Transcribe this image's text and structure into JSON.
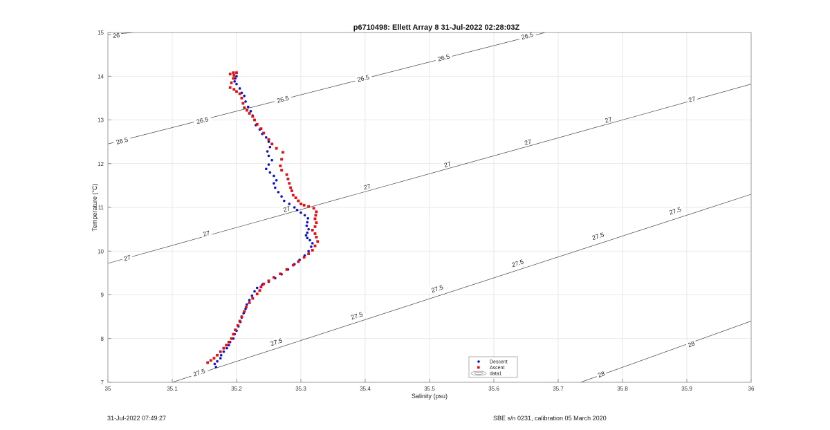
{
  "chart_data": {
    "type": "scatter",
    "title": "p6710498: Ellett Array 8 31-Jul-2022 02:28:03Z",
    "xlabel": "Salinity (psu)",
    "ylabel": "Temperature (°C)",
    "xlim": [
      35,
      36
    ],
    "ylim": [
      7,
      15
    ],
    "x_ticks": [
      "35",
      "35.1",
      "35.2",
      "35.3",
      "35.4",
      "35.5",
      "35.6",
      "35.7",
      "35.8",
      "35.9",
      "36"
    ],
    "y_ticks": [
      "7",
      "8",
      "9",
      "10",
      "11",
      "12",
      "13",
      "14",
      "15"
    ],
    "grid": true,
    "legend_position": "bottom-center",
    "contours": [
      {
        "label": "26",
        "points": [
          [
            35.0,
            14.95
          ],
          [
            35.04,
            15.0
          ]
        ],
        "label_positions": [
          [
            35.013,
            14.93
          ]
        ]
      },
      {
        "label": "26.5",
        "points": [
          [
            35.0,
            12.45
          ],
          [
            35.68,
            15.0
          ]
        ],
        "label_positions": [
          [
            35.022,
            12.52
          ],
          [
            35.147,
            12.99
          ],
          [
            35.272,
            13.47
          ],
          [
            35.397,
            13.95
          ],
          [
            35.522,
            14.42
          ],
          [
            35.652,
            14.92
          ]
        ]
      },
      {
        "label": "27",
        "points": [
          [
            35.0,
            9.72
          ],
          [
            36.0,
            13.82
          ]
        ],
        "label_positions": [
          [
            35.03,
            9.84
          ],
          [
            35.153,
            10.4
          ],
          [
            35.278,
            10.96
          ],
          [
            35.403,
            11.47
          ],
          [
            35.528,
            11.98
          ],
          [
            35.653,
            12.49
          ],
          [
            35.778,
            13.0
          ],
          [
            35.908,
            13.47
          ]
        ]
      },
      {
        "label": "27.5",
        "points": [
          [
            35.1,
            7.0
          ],
          [
            36.0,
            11.3
          ]
        ],
        "label_positions": [
          [
            35.142,
            7.22
          ],
          [
            35.262,
            7.92
          ],
          [
            35.387,
            8.52
          ],
          [
            35.512,
            9.14
          ],
          [
            35.637,
            9.72
          ],
          [
            35.762,
            10.34
          ],
          [
            35.882,
            10.92
          ]
        ]
      },
      {
        "label": "28",
        "points": [
          [
            35.735,
            7.0
          ],
          [
            36.0,
            8.4
          ]
        ],
        "label_positions": [
          [
            35.767,
            7.18
          ],
          [
            35.907,
            7.87
          ]
        ]
      }
    ],
    "series": [
      {
        "name": "Descent",
        "color": "#1111cc",
        "marker": "dot",
        "points": [
          [
            35.168,
            7.35
          ],
          [
            35.166,
            7.42
          ],
          [
            35.17,
            7.48
          ],
          [
            35.175,
            7.55
          ],
          [
            35.176,
            7.62
          ],
          [
            35.18,
            7.7
          ],
          [
            35.185,
            7.78
          ],
          [
            35.188,
            7.85
          ],
          [
            35.19,
            7.92
          ],
          [
            35.195,
            8.0
          ],
          [
            35.197,
            8.1
          ],
          [
            35.2,
            8.18
          ],
          [
            35.203,
            8.28
          ],
          [
            35.206,
            8.38
          ],
          [
            35.208,
            8.48
          ],
          [
            35.211,
            8.58
          ],
          [
            35.214,
            8.68
          ],
          [
            35.216,
            8.78
          ],
          [
            35.22,
            8.88
          ],
          [
            35.224,
            8.98
          ],
          [
            35.228,
            9.08
          ],
          [
            35.232,
            9.16
          ],
          [
            35.24,
            9.23
          ],
          [
            35.25,
            9.3
          ],
          [
            35.26,
            9.38
          ],
          [
            35.27,
            9.47
          ],
          [
            35.28,
            9.58
          ],
          [
            35.29,
            9.7
          ],
          [
            35.298,
            9.8
          ],
          [
            35.306,
            9.9
          ],
          [
            35.312,
            10.0
          ],
          [
            35.316,
            10.1
          ],
          [
            35.318,
            10.18
          ],
          [
            35.314,
            10.25
          ],
          [
            35.31,
            10.3
          ],
          [
            35.308,
            10.36
          ],
          [
            35.31,
            10.42
          ],
          [
            35.312,
            10.5
          ],
          [
            35.309,
            10.58
          ],
          [
            35.31,
            10.66
          ],
          [
            35.311,
            10.75
          ],
          [
            35.306,
            10.82
          ],
          [
            35.3,
            10.88
          ],
          [
            35.294,
            10.94
          ],
          [
            35.29,
            11.0
          ],
          [
            35.282,
            11.08
          ],
          [
            35.274,
            11.15
          ],
          [
            35.27,
            11.25
          ],
          [
            35.265,
            11.35
          ],
          [
            35.26,
            11.45
          ],
          [
            35.258,
            11.55
          ],
          [
            35.262,
            11.62
          ],
          [
            35.258,
            11.72
          ],
          [
            35.252,
            11.8
          ],
          [
            35.246,
            11.88
          ],
          [
            35.25,
            11.98
          ],
          [
            35.255,
            12.08
          ],
          [
            35.25,
            12.18
          ],
          [
            35.248,
            12.28
          ],
          [
            35.252,
            12.38
          ],
          [
            35.25,
            12.5
          ],
          [
            35.246,
            12.6
          ],
          [
            35.24,
            12.68
          ],
          [
            35.236,
            12.78
          ],
          [
            35.23,
            12.88
          ],
          [
            35.228,
            13.0
          ],
          [
            35.225,
            13.1
          ],
          [
            35.222,
            13.2
          ],
          [
            35.218,
            13.3
          ],
          [
            35.214,
            13.42
          ],
          [
            35.212,
            13.55
          ],
          [
            35.208,
            13.62
          ],
          [
            35.205,
            13.72
          ],
          [
            35.2,
            13.82
          ],
          [
            35.197,
            13.88
          ],
          [
            35.198,
            13.95
          ],
          [
            35.2,
            14.0
          ]
        ]
      },
      {
        "name": "Ascent",
        "color": "#dd1111",
        "marker": "square",
        "points": [
          [
            35.155,
            7.45
          ],
          [
            35.16,
            7.5
          ],
          [
            35.165,
            7.55
          ],
          [
            35.17,
            7.62
          ],
          [
            35.175,
            7.7
          ],
          [
            35.18,
            7.78
          ],
          [
            35.184,
            7.85
          ],
          [
            35.188,
            7.92
          ],
          [
            35.192,
            8.0
          ],
          [
            35.195,
            8.1
          ],
          [
            35.198,
            8.2
          ],
          [
            35.202,
            8.3
          ],
          [
            35.205,
            8.4
          ],
          [
            35.208,
            8.5
          ],
          [
            35.212,
            8.62
          ],
          [
            35.215,
            8.72
          ],
          [
            35.22,
            8.82
          ],
          [
            35.225,
            8.92
          ],
          [
            35.232,
            9.02
          ],
          [
            35.236,
            9.1
          ],
          [
            35.238,
            9.18
          ],
          [
            35.242,
            9.25
          ],
          [
            35.25,
            9.32
          ],
          [
            35.258,
            9.4
          ],
          [
            35.268,
            9.48
          ],
          [
            35.278,
            9.58
          ],
          [
            35.288,
            9.68
          ],
          [
            35.296,
            9.76
          ],
          [
            35.305,
            9.86
          ],
          [
            35.312,
            9.94
          ],
          [
            35.318,
            10.02
          ],
          [
            35.322,
            10.12
          ],
          [
            35.326,
            10.22
          ],
          [
            35.324,
            10.32
          ],
          [
            35.322,
            10.4
          ],
          [
            35.318,
            10.48
          ],
          [
            35.322,
            10.56
          ],
          [
            35.324,
            10.65
          ],
          [
            35.322,
            10.74
          ],
          [
            35.323,
            10.82
          ],
          [
            35.324,
            10.9
          ],
          [
            35.32,
            10.98
          ],
          [
            35.312,
            11.02
          ],
          [
            35.305,
            11.05
          ],
          [
            35.3,
            11.08
          ],
          [
            35.296,
            11.15
          ],
          [
            35.292,
            11.22
          ],
          [
            35.288,
            11.28
          ],
          [
            35.286,
            11.38
          ],
          [
            35.284,
            11.45
          ],
          [
            35.282,
            11.55
          ],
          [
            35.28,
            11.65
          ],
          [
            35.278,
            11.75
          ],
          [
            35.27,
            11.85
          ],
          [
            35.268,
            11.95
          ],
          [
            35.27,
            12.1
          ],
          [
            35.272,
            12.26
          ],
          [
            35.262,
            12.35
          ],
          [
            35.255,
            12.45
          ],
          [
            35.25,
            12.55
          ],
          [
            35.242,
            12.7
          ],
          [
            35.238,
            12.8
          ],
          [
            35.232,
            12.9
          ],
          [
            35.228,
            13.0
          ],
          [
            35.225,
            13.08
          ],
          [
            35.22,
            13.15
          ],
          [
            35.216,
            13.22
          ],
          [
            35.212,
            13.28
          ],
          [
            35.21,
            13.38
          ],
          [
            35.208,
            13.5
          ],
          [
            35.205,
            13.6
          ],
          [
            35.2,
            13.65
          ],
          [
            35.196,
            13.7
          ],
          [
            35.19,
            13.74
          ],
          [
            35.192,
            13.85
          ],
          [
            35.195,
            13.95
          ],
          [
            35.196,
            14.02
          ],
          [
            35.19,
            14.05
          ],
          [
            35.195,
            14.08
          ],
          [
            35.2,
            14.08
          ]
        ]
      },
      {
        "name": "data1",
        "marker": "contour-legend",
        "points": []
      }
    ]
  },
  "footer": {
    "left": "31-Jul-2022 07:49:27",
    "right": "SBE s/n 0231, calibration 05 March 2020"
  }
}
